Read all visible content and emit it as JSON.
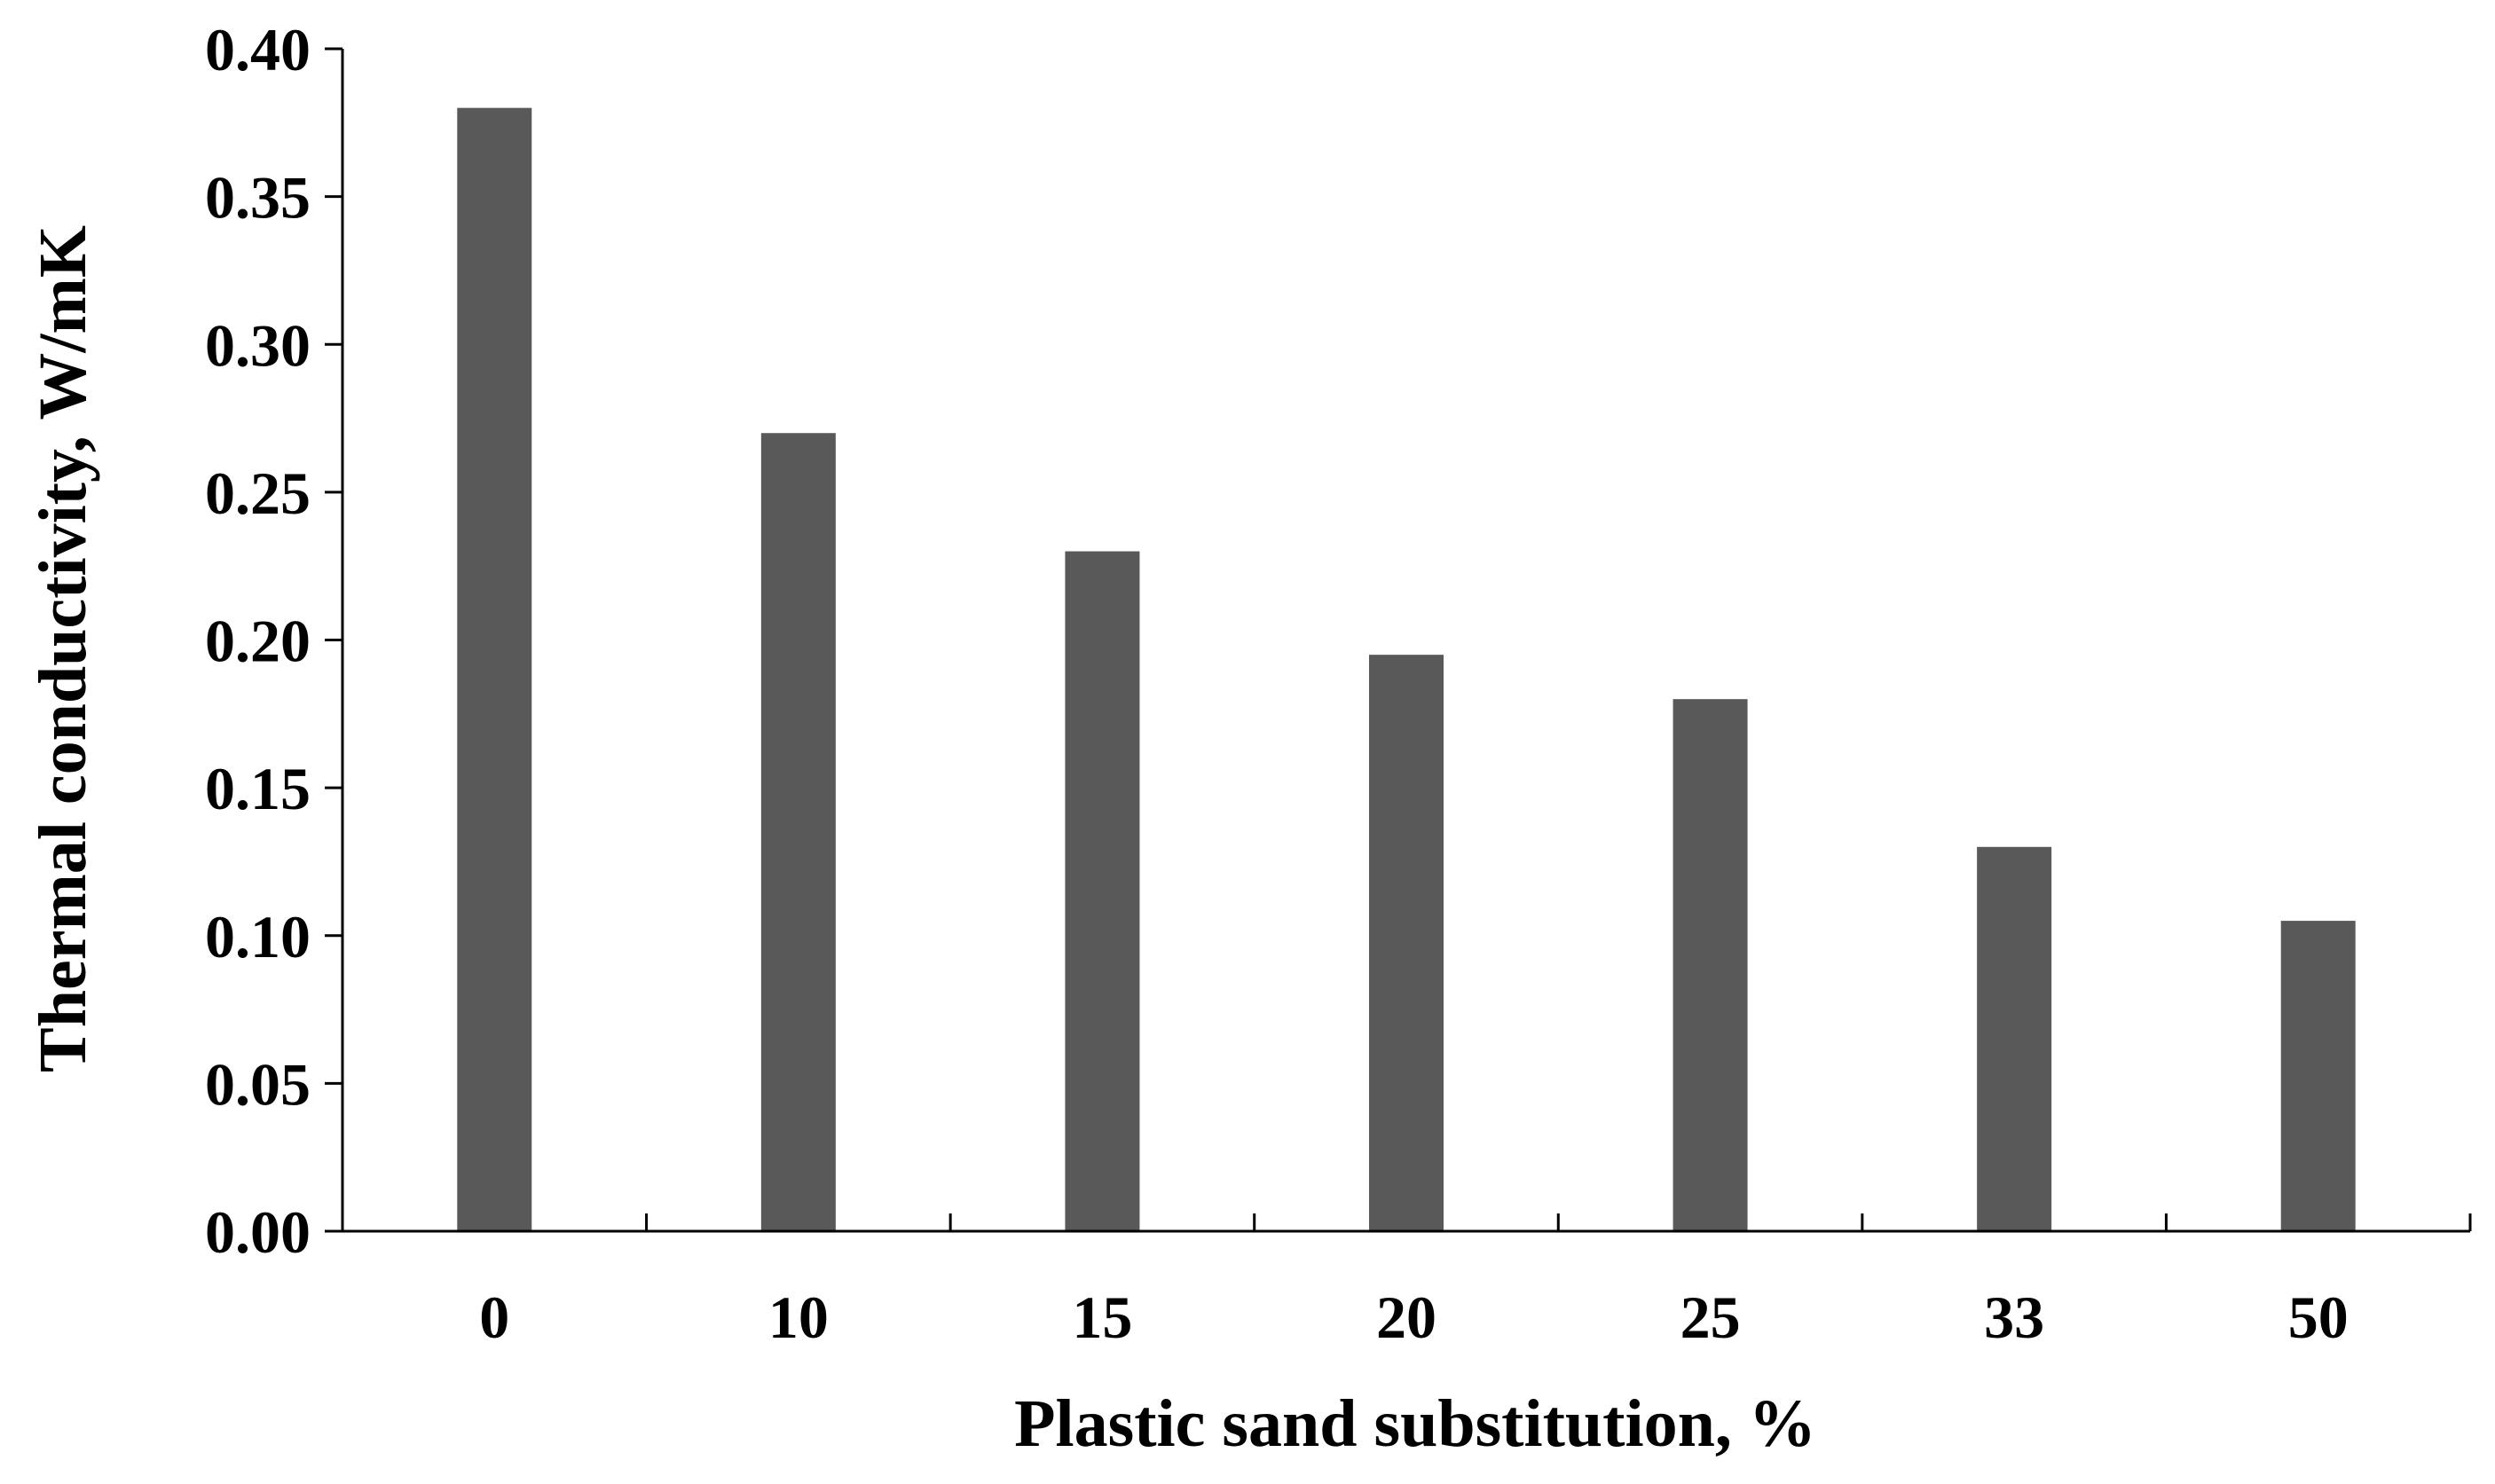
{
  "chart_data": {
    "type": "bar",
    "title": "",
    "xlabel": "Plastic sand substitution, %",
    "ylabel": "Thermal conductivity, W/mK",
    "categories": [
      "0",
      "10",
      "15",
      "20",
      "25",
      "33",
      "50"
    ],
    "values": [
      0.38,
      0.27,
      0.23,
      0.195,
      0.18,
      0.13,
      0.105
    ],
    "ylim": [
      0,
      0.4
    ],
    "yticks": [
      "0.00",
      "0.05",
      "0.10",
      "0.15",
      "0.20",
      "0.25",
      "0.30",
      "0.35",
      "0.40"
    ],
    "grid": false,
    "legend": "none",
    "bar_color": "#595959",
    "axis_color": "#000000"
  }
}
